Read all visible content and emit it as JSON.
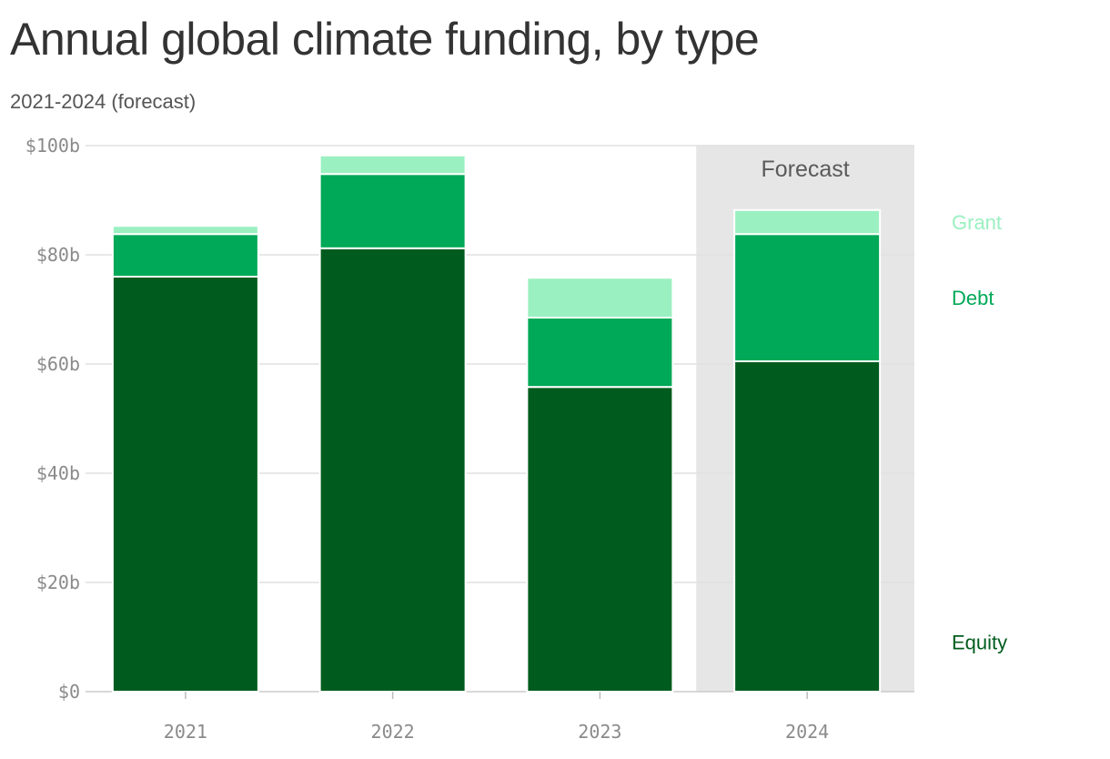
{
  "title": "Annual global climate funding, by type",
  "subtitle": "2021-2024 (forecast)",
  "forecast_label": "Forecast",
  "chart_data": {
    "type": "bar",
    "stacked": true,
    "categories": [
      "2021",
      "2022",
      "2023",
      "2024"
    ],
    "series": [
      {
        "name": "Equity",
        "color": "#005c1e",
        "values": [
          76,
          81.2,
          55.8,
          60.5
        ]
      },
      {
        "name": "Debt",
        "color": "#00a957",
        "values": [
          7.8,
          13.6,
          12.7,
          23.3
        ]
      },
      {
        "name": "Grant",
        "color": "#9bf0c1",
        "values": [
          1.5,
          3.4,
          7.3,
          4.4
        ]
      }
    ],
    "ylim": [
      0,
      100
    ],
    "y_ticks": [
      0,
      20,
      40,
      60,
      80,
      100
    ],
    "y_tick_labels": [
      "$0",
      "$20b",
      "$40b",
      "$60b",
      "$80b",
      "$100b"
    ],
    "forecast_category": "2024",
    "legend_position": "right",
    "grid": true
  }
}
